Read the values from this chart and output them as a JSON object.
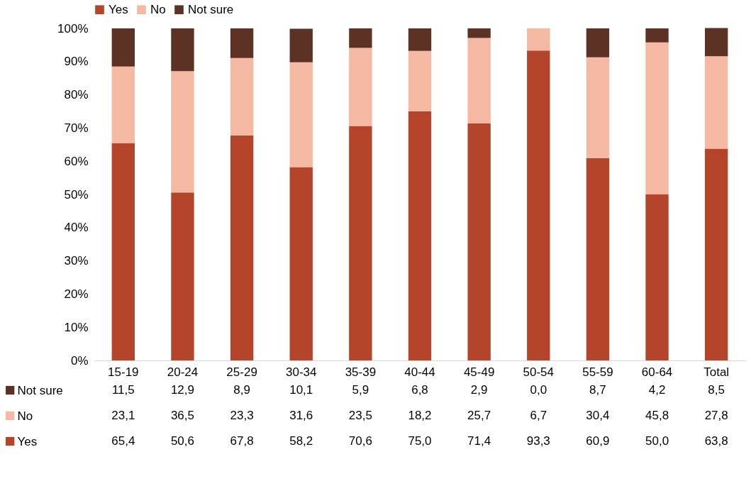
{
  "chart_data": {
    "type": "bar",
    "stacked": true,
    "categories": [
      "15-19",
      "20-24",
      "25-29",
      "30-34",
      "35-39",
      "40-44",
      "45-49",
      "50-54",
      "55-59",
      "60-64",
      "Total"
    ],
    "series": [
      {
        "name": "Yes",
        "color": "#b5452a",
        "values": [
          65.4,
          50.6,
          67.8,
          58.2,
          70.6,
          75.0,
          71.4,
          93.3,
          60.9,
          50.0,
          63.8
        ],
        "value_labels": [
          "65,4",
          "50,6",
          "67,8",
          "58,2",
          "70,6",
          "75,0",
          "71,4",
          "93,3",
          "60,9",
          "50,0",
          "63,8"
        ]
      },
      {
        "name": "No",
        "color": "#f5b8a2",
        "values": [
          23.1,
          36.5,
          23.3,
          31.6,
          23.5,
          18.2,
          25.7,
          6.7,
          30.4,
          45.8,
          27.8
        ],
        "value_labels": [
          "23,1",
          "36,5",
          "23,3",
          "31,6",
          "23,5",
          "18,2",
          "25,7",
          "6,7",
          "30,4",
          "45,8",
          "27,8"
        ]
      },
      {
        "name": "Not sure",
        "color": "#5c3224",
        "values": [
          11.5,
          12.9,
          8.9,
          10.1,
          5.9,
          6.8,
          2.9,
          0.0,
          8.7,
          4.2,
          8.5
        ],
        "value_labels": [
          "11,5",
          "12,9",
          "8,9",
          "10,1",
          "5,9",
          "6,8",
          "2,9",
          "0,0",
          "8,7",
          "4,2",
          "8,5"
        ]
      }
    ],
    "ylim": [
      0,
      100
    ],
    "yticks": [
      {
        "value": 0,
        "label": "0%"
      },
      {
        "value": 10,
        "label": "10%"
      },
      {
        "value": 20,
        "label": "20%"
      },
      {
        "value": 30,
        "label": "30%"
      },
      {
        "value": 40,
        "label": "40%"
      },
      {
        "value": 50,
        "label": "50%"
      },
      {
        "value": 60,
        "label": "60%"
      },
      {
        "value": 70,
        "label": "70%"
      },
      {
        "value": 80,
        "label": "80%"
      },
      {
        "value": 90,
        "label": "90%"
      },
      {
        "value": 100,
        "label": "100%"
      }
    ],
    "grid": false,
    "legend": "top"
  }
}
